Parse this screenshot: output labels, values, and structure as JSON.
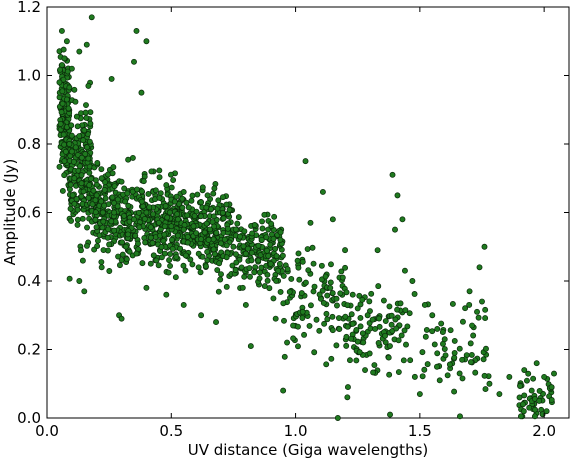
{
  "chart_data": {
    "type": "scatter",
    "title": "",
    "xlabel": "UV distance (Giga wavelengths)",
    "ylabel": "Amplitude (Jy)",
    "xlim": [
      0.0,
      2.1
    ],
    "ylim": [
      0.0,
      1.2
    ],
    "xticks": [
      "0.0",
      "0.5",
      "1.0",
      "1.5",
      "2.0"
    ],
    "yticks": [
      "0.0",
      "0.2",
      "0.4",
      "0.6",
      "0.8",
      "1.0",
      "1.2"
    ],
    "grid": false,
    "legend": "none",
    "marker_fill": "#1f7a1f",
    "marker_edge": "#0a2a0a",
    "density_clusters": [
      {
        "x_range": [
          0.05,
          0.09
        ],
        "y_center": 0.88,
        "y_spread": 0.09,
        "weight": 50
      },
      {
        "x_range": [
          0.09,
          0.18
        ],
        "y_center": 0.72,
        "y_spread": 0.09,
        "weight": 70
      },
      {
        "x_range": [
          0.18,
          0.3
        ],
        "y_center": 0.6,
        "y_spread": 0.06,
        "weight": 60
      },
      {
        "x_range": [
          0.3,
          0.55
        ],
        "y_center": 0.57,
        "y_spread": 0.06,
        "weight": 110
      },
      {
        "x_range": [
          0.55,
          0.75
        ],
        "y_center": 0.54,
        "y_spread": 0.06,
        "weight": 80
      },
      {
        "x_range": [
          0.75,
          0.95
        ],
        "y_center": 0.48,
        "y_spread": 0.05,
        "weight": 55
      },
      {
        "x_range": [
          0.95,
          1.2
        ],
        "y_center": 0.34,
        "y_spread": 0.07,
        "weight": 35
      },
      {
        "x_range": [
          1.2,
          1.45
        ],
        "y_center": 0.26,
        "y_spread": 0.06,
        "weight": 35
      },
      {
        "x_range": [
          1.45,
          1.78
        ],
        "y_center": 0.2,
        "y_spread": 0.07,
        "weight": 20
      },
      {
        "x_range": [
          1.9,
          2.04
        ],
        "y_center": 0.05,
        "y_spread": 0.04,
        "weight": 15
      }
    ],
    "points": [
      [
        0.06,
        1.13
      ],
      [
        0.08,
        1.1
      ],
      [
        0.13,
        1.07
      ],
      [
        0.18,
        1.17
      ],
      [
        0.16,
        1.09
      ],
      [
        0.36,
        1.13
      ],
      [
        0.4,
        1.1
      ],
      [
        0.35,
        1.04
      ],
      [
        0.38,
        0.95
      ],
      [
        0.26,
        0.99
      ],
      [
        0.07,
        1.05
      ],
      [
        0.1,
        1.02
      ],
      [
        0.05,
        0.98
      ],
      [
        0.08,
        0.93
      ],
      [
        0.12,
        0.88
      ],
      [
        0.15,
        0.84
      ],
      [
        0.09,
        0.8
      ],
      [
        0.14,
        0.76
      ],
      [
        0.07,
        0.75
      ],
      [
        0.11,
        0.7
      ],
      [
        0.17,
        0.68
      ],
      [
        0.2,
        0.65
      ],
      [
        0.23,
        0.62
      ],
      [
        0.27,
        0.6
      ],
      [
        0.31,
        0.59
      ],
      [
        0.35,
        0.58
      ],
      [
        0.4,
        0.6
      ],
      [
        0.45,
        0.57
      ],
      [
        0.5,
        0.56
      ],
      [
        0.55,
        0.55
      ],
      [
        0.6,
        0.54
      ],
      [
        0.65,
        0.52
      ],
      [
        0.7,
        0.51
      ],
      [
        0.75,
        0.5
      ],
      [
        0.8,
        0.48
      ],
      [
        0.85,
        0.46
      ],
      [
        0.9,
        0.45
      ],
      [
        0.93,
        0.43
      ],
      [
        0.22,
        0.7
      ],
      [
        0.3,
        0.69
      ],
      [
        0.42,
        0.72
      ],
      [
        0.48,
        0.68
      ],
      [
        0.55,
        0.66
      ],
      [
        0.62,
        0.63
      ],
      [
        0.66,
        0.61
      ],
      [
        0.36,
        0.48
      ],
      [
        0.44,
        0.46
      ],
      [
        0.52,
        0.47
      ],
      [
        0.61,
        0.44
      ],
      [
        0.7,
        0.42
      ],
      [
        0.15,
        0.37
      ],
      [
        0.13,
        0.4
      ],
      [
        0.22,
        0.44
      ],
      [
        0.29,
        0.3
      ],
      [
        0.3,
        0.29
      ],
      [
        0.4,
        0.38
      ],
      [
        0.48,
        0.36
      ],
      [
        0.55,
        0.33
      ],
      [
        0.62,
        0.3
      ],
      [
        0.68,
        0.28
      ],
      [
        0.8,
        0.33
      ],
      [
        0.82,
        0.21
      ],
      [
        0.95,
        0.08
      ],
      [
        0.92,
        0.29
      ],
      [
        0.99,
        0.27
      ],
      [
        1.04,
        0.75
      ],
      [
        1.11,
        0.66
      ],
      [
        1.06,
        0.57
      ],
      [
        1.15,
        0.58
      ],
      [
        1.19,
        0.41
      ],
      [
        1.23,
        0.36
      ],
      [
        1.25,
        0.32
      ],
      [
        1.29,
        0.3
      ],
      [
        1.32,
        0.26
      ],
      [
        1.36,
        0.24
      ],
      [
        1.39,
        0.71
      ],
      [
        1.41,
        0.65
      ],
      [
        1.43,
        0.58
      ],
      [
        1.4,
        0.55
      ],
      [
        1.33,
        0.49
      ],
      [
        1.44,
        0.43
      ],
      [
        1.47,
        0.4
      ],
      [
        1.52,
        0.33
      ],
      [
        1.55,
        0.3
      ],
      [
        1.57,
        0.26
      ],
      [
        1.6,
        0.23
      ],
      [
        1.64,
        0.19
      ],
      [
        1.67,
        0.17
      ],
      [
        1.71,
        0.27
      ],
      [
        1.73,
        0.31
      ],
      [
        1.75,
        0.34
      ],
      [
        1.76,
        0.5
      ],
      [
        1.74,
        0.44
      ],
      [
        1.7,
        0.37
      ],
      [
        1.5,
        0.07
      ],
      [
        1.58,
        0.11
      ],
      [
        1.66,
        0.13
      ],
      [
        1.78,
        0.1
      ],
      [
        1.82,
        0.07
      ],
      [
        1.86,
        0.12
      ],
      [
        1.92,
        0.14
      ],
      [
        1.95,
        0.08
      ],
      [
        1.98,
        0.05
      ],
      [
        2.01,
        0.02
      ],
      [
        2.03,
        0.09
      ],
      [
        1.97,
        0.16
      ],
      [
        2.0,
        0.12
      ],
      [
        1.94,
        0.03
      ],
      [
        1.17,
        0.0
      ],
      [
        1.38,
        0.01
      ]
    ]
  }
}
